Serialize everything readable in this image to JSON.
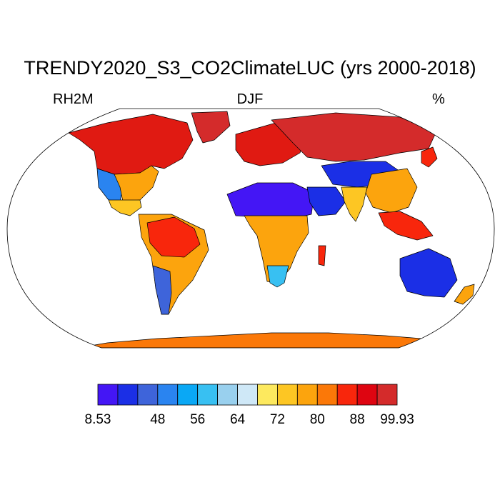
{
  "title": "TRENDY2020_S3_CO2ClimateLUC (yrs 2000-2018)",
  "left_label": "RH2M",
  "center_label": "DJF",
  "right_label": "%",
  "colorbar": {
    "colors": [
      "#4416f5",
      "#1b2fe6",
      "#3e64da",
      "#2a84f0",
      "#0aa8f5",
      "#38c0f2",
      "#99d0ee",
      "#cfe8f7",
      "#fde95e",
      "#fdc623",
      "#fca40d",
      "#fb7808",
      "#f8260c",
      "#de0511",
      "#d42b2b"
    ],
    "labels": [
      "8.53",
      "48",
      "56",
      "64",
      "72",
      "80",
      "88",
      "99.93"
    ]
  },
  "regions": [
    {
      "name": "greenland",
      "color": "#d42b2b"
    },
    {
      "name": "north-america",
      "color": "#e01a12"
    },
    {
      "name": "us-west",
      "color": "#2a84f0"
    },
    {
      "name": "us-east",
      "color": "#fca40d"
    },
    {
      "name": "central-america",
      "color": "#fdc623"
    },
    {
      "name": "south-america",
      "color": "#fca40d"
    },
    {
      "name": "amazon",
      "color": "#f8260c"
    },
    {
      "name": "patagonia",
      "color": "#3e64da"
    },
    {
      "name": "europe",
      "color": "#e01a12"
    },
    {
      "name": "russia",
      "color": "#d42b2b"
    },
    {
      "name": "sahara",
      "color": "#4416f5"
    },
    {
      "name": "arabia",
      "color": "#1b2fe6"
    },
    {
      "name": "central-asia",
      "color": "#1b2fe6"
    },
    {
      "name": "africa-central",
      "color": "#fca40d"
    },
    {
      "name": "south-africa",
      "color": "#38c0f2"
    },
    {
      "name": "india",
      "color": "#fdc623"
    },
    {
      "name": "china",
      "color": "#fca40d"
    },
    {
      "name": "southeast-asia",
      "color": "#f8260c"
    },
    {
      "name": "japan",
      "color": "#f8260c"
    },
    {
      "name": "madagascar",
      "color": "#f8260c"
    },
    {
      "name": "australia",
      "color": "#1b2fe6"
    },
    {
      "name": "new-zealand",
      "color": "#fca40d"
    },
    {
      "name": "antarctica",
      "color": "#fb7808"
    }
  ]
}
